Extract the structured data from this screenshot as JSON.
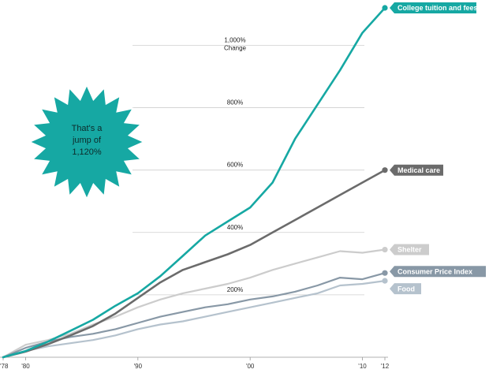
{
  "chart_data": {
    "type": "line",
    "title": "",
    "xlabel": "",
    "ylabel": "",
    "x_ticks": [
      "'78",
      "'80",
      "'90",
      "'00",
      "'10",
      "'12"
    ],
    "x_tick_values": [
      1978,
      1980,
      1990,
      2000,
      2010,
      2012
    ],
    "y_grid_labels": [
      {
        "value": 200,
        "text": "200%"
      },
      {
        "value": 400,
        "text": "400%"
      },
      {
        "value": 600,
        "text": "600%"
      },
      {
        "value": 800,
        "text": "800%"
      },
      {
        "value": 1000,
        "text": "1,000%",
        "text2": "Change"
      }
    ],
    "xlim": [
      1978,
      2012
    ],
    "ylim": [
      0,
      1120
    ],
    "grid": true,
    "legend": "labels at series ends",
    "series": [
      {
        "name": "College tuition  and fees",
        "color": "#16a8a3",
        "x": [
          1978,
          1980,
          1982,
          1984,
          1986,
          1988,
          1990,
          1992,
          1994,
          1996,
          1998,
          2000,
          2002,
          2004,
          2006,
          2008,
          2010,
          2012
        ],
        "y": [
          0,
          20,
          50,
          85,
          120,
          165,
          205,
          260,
          325,
          390,
          435,
          480,
          560,
          700,
          810,
          920,
          1040,
          1120
        ]
      },
      {
        "name": "Medical care",
        "color": "#6b6b6b",
        "x": [
          1978,
          1980,
          1982,
          1984,
          1986,
          1988,
          1990,
          1992,
          1994,
          1996,
          1998,
          2000,
          2002,
          2004,
          2006,
          2008,
          2010,
          2012
        ],
        "y": [
          0,
          18,
          42,
          70,
          100,
          140,
          190,
          240,
          280,
          305,
          330,
          360,
          400,
          440,
          480,
          520,
          560,
          600
        ]
      },
      {
        "name": "Shelter",
        "color": "#cccccc",
        "x": [
          1978,
          1980,
          1982,
          1984,
          1986,
          1988,
          1990,
          1992,
          1994,
          1996,
          1998,
          2000,
          2002,
          2004,
          2006,
          2008,
          2010,
          2012
        ],
        "y": [
          0,
          40,
          55,
          75,
          105,
          130,
          160,
          185,
          205,
          220,
          235,
          255,
          280,
          300,
          320,
          340,
          335,
          345
        ]
      },
      {
        "name": "Consumer Price Index",
        "color": "#8898a6",
        "x": [
          1978,
          1980,
          1982,
          1984,
          1986,
          1988,
          1990,
          1992,
          1994,
          1996,
          1998,
          2000,
          2002,
          2004,
          2006,
          2008,
          2010,
          2012
        ],
        "y": [
          0,
          30,
          50,
          65,
          75,
          90,
          110,
          130,
          145,
          160,
          170,
          185,
          195,
          210,
          230,
          255,
          250,
          270
        ]
      },
      {
        "name": "Food",
        "color": "#b5c2cd",
        "x": [
          1978,
          1980,
          1982,
          1984,
          1986,
          1988,
          1990,
          1992,
          1994,
          1996,
          1998,
          2000,
          2002,
          2004,
          2006,
          2008,
          2010,
          2012
        ],
        "y": [
          0,
          20,
          35,
          45,
          55,
          70,
          90,
          105,
          115,
          130,
          145,
          160,
          175,
          190,
          205,
          230,
          235,
          245
        ]
      }
    ],
    "annotation": {
      "lines": [
        "That's a",
        "jump of",
        "1,120%"
      ],
      "fill": "#16a8a3",
      "stroke": "#ffffff"
    }
  }
}
